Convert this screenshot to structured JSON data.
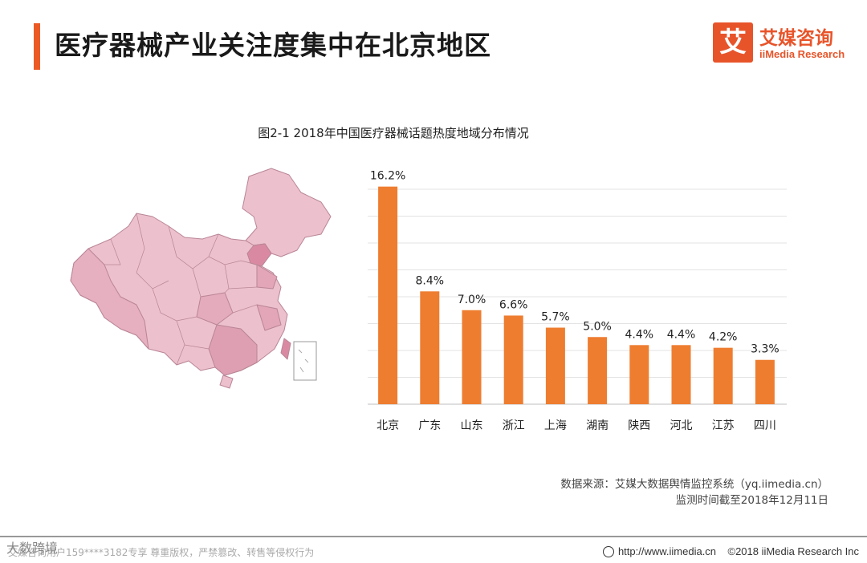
{
  "header": {
    "title": "医疗器械产业关注度集中在北京地区",
    "logo_glyph": "艾",
    "logo_cn": "艾媒咨询",
    "logo_en": "iiMedia Research",
    "accent_color": "#ec5a24"
  },
  "chart_data": {
    "type": "bar",
    "title": "图2-1 2018年中国医疗器械话题热度地域分布情况",
    "categories": [
      "北京",
      "广东",
      "山东",
      "浙江",
      "上海",
      "湖南",
      "陕西",
      "河北",
      "江苏",
      "四川"
    ],
    "values": [
      16.2,
      8.4,
      7.0,
      6.6,
      5.7,
      5.0,
      4.4,
      4.4,
      4.2,
      3.3
    ],
    "value_labels": [
      "16.2%",
      "8.4%",
      "7.0%",
      "6.6%",
      "5.7%",
      "5.0%",
      "4.4%",
      "4.4%",
      "4.2%",
      "3.3%"
    ],
    "ylim": [
      0,
      16
    ],
    "grid": true,
    "bar_color": "#ee7d30"
  },
  "map": {
    "icon": "china-map-icon",
    "fill_color": "#ecc0cd"
  },
  "source": {
    "line1": "数据来源：艾媒大数据舆情监控系统（yq.iimedia.cn）",
    "line2": "监测时间截至2018年12月11日"
  },
  "footer": {
    "left_text": "艾媒咨询用户159****3182专享 尊重版权，严禁篡改、转售等侵权行为",
    "watermark": "大数跨境",
    "url": "http://www.iimedia.cn",
    "copyright": "©2018  iiMedia Research  Inc"
  }
}
